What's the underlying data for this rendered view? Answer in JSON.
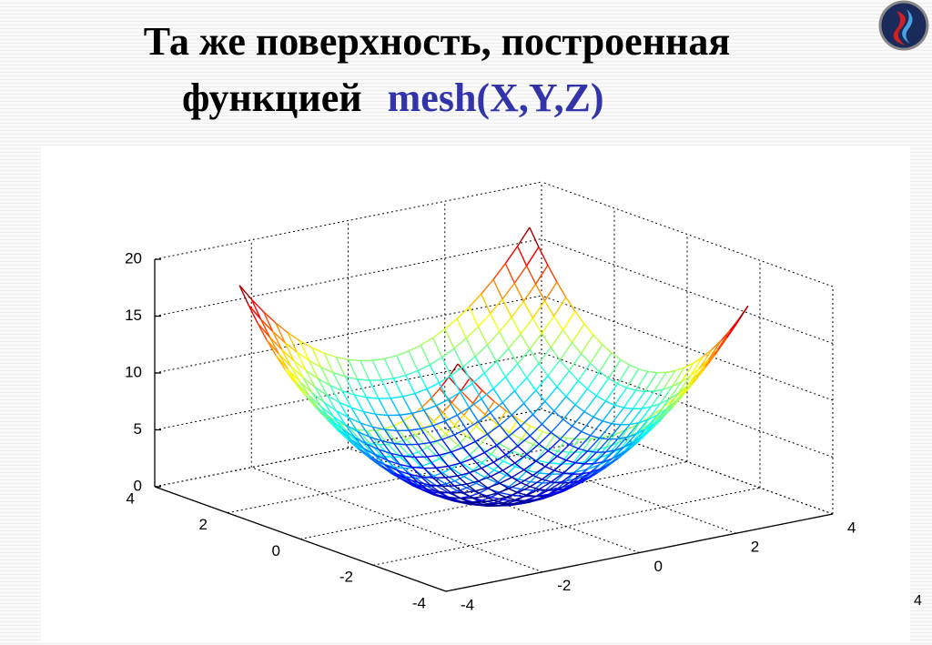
{
  "header": {
    "title_line1": "Та же поверхность, построенная",
    "title_line2": "функцией",
    "code": "mesh(X,Y,Z)"
  },
  "plot": {
    "z_ticks": [
      "20",
      "15",
      "10",
      "5",
      "0"
    ],
    "a_ticks": [
      "4",
      "2",
      "0",
      "-2",
      "-4"
    ],
    "b_ticks": [
      "-4",
      "-2",
      "0",
      "2",
      "4"
    ]
  },
  "page_number": "4"
}
